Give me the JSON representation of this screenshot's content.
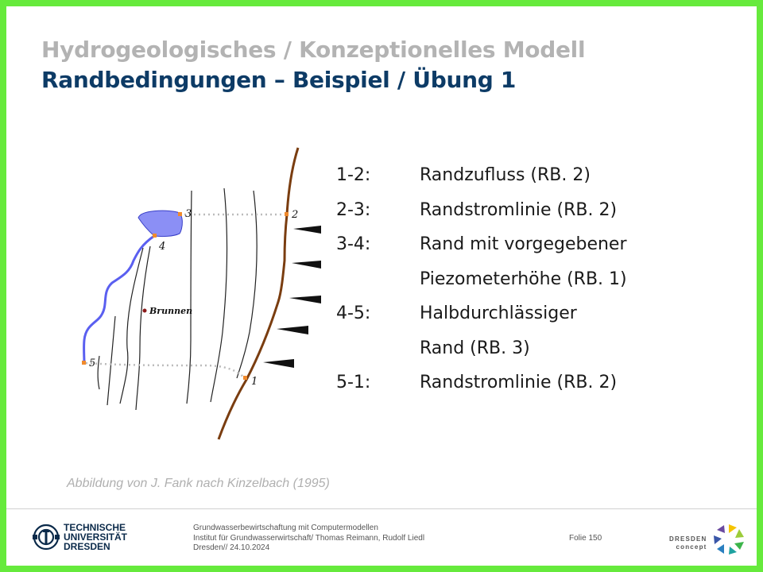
{
  "header": {
    "title_line1": "Hydrogeologisches / Konzeptionelles Modell",
    "title_line2": "Randbedingungen – Beispiel / Übung 1"
  },
  "diagram": {
    "point_labels": [
      "1",
      "2",
      "3",
      "4",
      "5"
    ],
    "well_label": "Brunnen",
    "colors": {
      "river": "#5a5ff0",
      "lake": "#8b8ff5",
      "boundary": "#7a3d10",
      "points": "#f08a2c",
      "well": "#8b1a1a",
      "equipotentials": "#222222",
      "dotted_connector": "#bbbbbb",
      "inflow_arrows": "#111111"
    }
  },
  "boundary_list": [
    {
      "key": "1-2:",
      "value": "Randzufluss (RB. 2)"
    },
    {
      "key": "2-3:",
      "value": "Randstromlinie (RB. 2)"
    },
    {
      "key": "3-4:",
      "value": "Rand mit vorgegebener"
    },
    {
      "key": "",
      "value": "Piezometerhöhe (RB. 1)"
    },
    {
      "key": "4-5:",
      "value": "Halbdurchlässiger"
    },
    {
      "key": "",
      "value": "Rand (RB. 3)"
    },
    {
      "key": "5-1:",
      "value": "Randstromlinie (RB. 2)"
    }
  ],
  "caption": "Abbildung von J. Fank nach Kinzelbach (1995)",
  "footer": {
    "tu_logo_lines": [
      "TECHNISCHE",
      "UNIVERSITÄT",
      "DRESDEN"
    ],
    "info_lines": [
      "Grundwasserbewirtschaftung mit Computermodellen",
      "Institut für Grundwasserwirtschaft/ Thomas Reimann, Rudolf Liedl",
      "Dresden// 24.10.2024"
    ],
    "slide_number": "Folie 150",
    "dresden_concept_lines": [
      "DRESDEN",
      "concept"
    ]
  },
  "theme": {
    "frame": "#66ea3c",
    "title_gray": "#b3b3b3",
    "title_blue": "#0d3b66"
  }
}
